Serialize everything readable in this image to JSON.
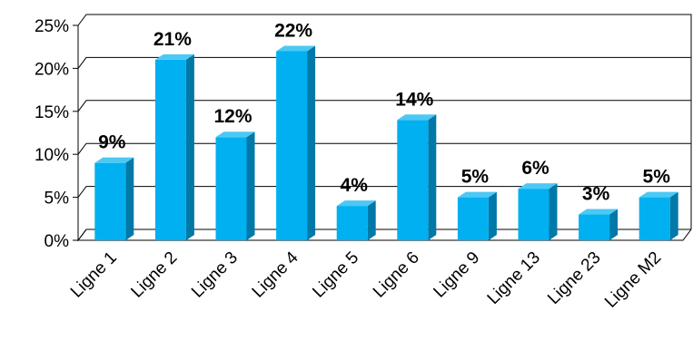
{
  "chart_data": {
    "type": "bar",
    "categories": [
      "Ligne 1",
      "Ligne 2",
      "Ligne 3",
      "Ligne 4",
      "Ligne 5",
      "Ligne 6",
      "Ligne 9",
      "Ligne 13",
      "Ligne 23",
      "Ligne M2"
    ],
    "values": [
      9,
      21,
      12,
      22,
      4,
      14,
      5,
      6,
      3,
      5
    ],
    "value_labels": [
      "9%",
      "21%",
      "12%",
      "22%",
      "4%",
      "14%",
      "5%",
      "6%",
      "3%",
      "5%"
    ],
    "y_ticks": [
      "0%",
      "5%",
      "10%",
      "15%",
      "20%",
      "25%"
    ],
    "ylim": [
      0,
      25
    ],
    "grid": true,
    "style": "3d-bar",
    "colors": {
      "bar_front": "#00b0f0",
      "bar_side": "#0079a8",
      "bar_top": "#4cc8f4",
      "grid": "#000000",
      "text": "#000000"
    }
  }
}
